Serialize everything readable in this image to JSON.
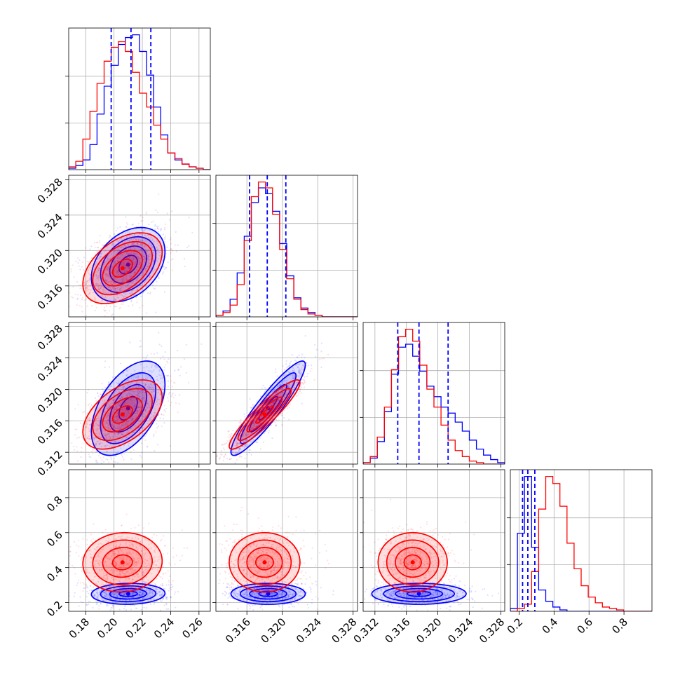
{
  "chart_data": {
    "type": "corner",
    "colors": {
      "series_a": "#0000ff",
      "series_b": "#ff0000"
    },
    "grid": true,
    "params": [
      {
        "range": [
          0.168,
          0.268
        ],
        "ticks": [
          "0.18",
          "0.20",
          "0.22",
          "0.24",
          "0.26"
        ]
      },
      {
        "range": [
          0.3125,
          0.3285
        ],
        "ticks": [
          "0.316",
          "0.320",
          "0.324",
          "0.328"
        ]
      },
      {
        "range": [
          0.3105,
          0.3285
        ],
        "ticks": [
          "0.312",
          "0.316",
          "0.320",
          "0.324",
          "0.328"
        ]
      },
      {
        "range": [
          0.15,
          0.96
        ],
        "ticks": [
          "0.2",
          "0.4",
          "0.6",
          "0.8"
        ]
      }
    ],
    "row_tick_labels": [
      [],
      [
        "0.316",
        "0.320",
        "0.324",
        "0.328"
      ],
      [
        "0.312",
        "0.316",
        "0.320",
        "0.324",
        "0.328"
      ],
      [
        "0.2",
        "0.4",
        "0.6",
        "0.8"
      ]
    ],
    "quantile_lines": [
      [
        0.198,
        0.212,
        0.226
      ],
      [
        0.3163,
        0.3183,
        0.3204
      ],
      [
        0.3149,
        0.3176,
        0.3213
      ],
      [
        0.22,
        0.25,
        0.29
      ]
    ],
    "histograms": [
      {
        "edges": [
          0.168,
          0.173,
          0.178,
          0.183,
          0.188,
          0.193,
          0.198,
          0.203,
          0.208,
          0.213,
          0.218,
          0.223,
          0.228,
          0.233,
          0.238,
          0.243,
          0.248,
          0.253,
          0.258,
          0.263,
          0.268
        ],
        "series_a": [
          1,
          3,
          7,
          18,
          40,
          60,
          75,
          90,
          95,
          97,
          85,
          68,
          45,
          25,
          12,
          7,
          4,
          2,
          1,
          0
        ],
        "series_b": [
          2,
          6,
          22,
          42,
          62,
          78,
          88,
          92,
          85,
          70,
          55,
          45,
          32,
          22,
          12,
          8,
          4,
          2,
          1,
          0
        ]
      },
      {
        "edges": [
          0.3125,
          0.3133,
          0.3141,
          0.3149,
          0.3157,
          0.3165,
          0.3173,
          0.3181,
          0.3189,
          0.3197,
          0.3205,
          0.3213,
          0.3221,
          0.3229,
          0.3237,
          0.3245,
          0.3253,
          0.3261,
          0.3269,
          0.3277,
          0.3285
        ],
        "series_a": [
          1,
          4,
          12,
          30,
          55,
          78,
          88,
          84,
          72,
          50,
          28,
          13,
          6,
          3,
          1,
          0,
          0,
          0,
          0,
          0
        ],
        "series_b": [
          1,
          3,
          8,
          22,
          52,
          82,
          92,
          88,
          70,
          46,
          26,
          12,
          5,
          2,
          1,
          0,
          0,
          0,
          0,
          0
        ]
      },
      {
        "edges": [
          0.3105,
          0.3114,
          0.3123,
          0.3132,
          0.3141,
          0.315,
          0.3159,
          0.3168,
          0.3177,
          0.3186,
          0.3195,
          0.3204,
          0.3213,
          0.3222,
          0.3231,
          0.324,
          0.3249,
          0.3258,
          0.3267,
          0.3276,
          0.3285
        ],
        "series_a": [
          1,
          4,
          15,
          35,
          60,
          78,
          80,
          72,
          62,
          52,
          45,
          38,
          34,
          28,
          22,
          16,
          10,
          6,
          3,
          1
        ],
        "series_b": [
          1,
          5,
          18,
          38,
          63,
          85,
          90,
          82,
          66,
          50,
          38,
          26,
          16,
          9,
          5,
          2,
          1,
          0,
          0,
          0
        ]
      },
      {
        "edges": [
          0.15,
          0.1905,
          0.231,
          0.2715,
          0.312,
          0.3525,
          0.393,
          0.4335,
          0.474,
          0.5145,
          0.555,
          0.5955,
          0.636,
          0.6765,
          0.717,
          0.7575,
          0.798,
          0.8385,
          0.879,
          0.9195,
          0.96
        ],
        "series_a": [
          2,
          55,
          95,
          45,
          15,
          7,
          3,
          1,
          0,
          0,
          0,
          0,
          0,
          0,
          0,
          0,
          0,
          0,
          0,
          0
        ],
        "series_b": [
          0,
          2,
          5,
          28,
          72,
          95,
          90,
          74,
          48,
          30,
          18,
          10,
          6,
          3,
          2,
          1,
          0,
          0,
          0,
          0
        ]
      }
    ],
    "density_2d": [
      {
        "x_param": 0,
        "y_param": 1,
        "series_a": {
          "mean": [
            0.21,
            0.3184
          ],
          "sd": [
            0.013,
            0.0021
          ],
          "rho": 0.35
        },
        "series_b": {
          "mean": [
            0.206,
            0.318
          ],
          "sd": [
            0.014,
            0.002
          ],
          "rho": 0.45
        }
      },
      {
        "x_param": 0,
        "y_param": 2,
        "series_a": {
          "mean": [
            0.21,
            0.3176
          ],
          "sd": [
            0.013,
            0.003
          ],
          "rho": 0.5
        },
        "series_b": {
          "mean": [
            0.206,
            0.3168
          ],
          "sd": [
            0.014,
            0.0022
          ],
          "rho": 0.5
        }
      },
      {
        "x_param": 1,
        "y_param": 2,
        "series_a": {
          "mean": [
            0.3184,
            0.3176
          ],
          "sd": [
            0.0021,
            0.003
          ],
          "rho": 0.92
        },
        "series_b": {
          "mean": [
            0.318,
            0.3168
          ],
          "sd": [
            0.002,
            0.0022
          ],
          "rho": 0.92
        }
      },
      {
        "x_param": 0,
        "y_param": 3,
        "series_a": {
          "mean": [
            0.21,
            0.25
          ],
          "sd": [
            0.013,
            0.03
          ],
          "rho": 0.05
        },
        "series_b": {
          "mean": [
            0.206,
            0.43
          ],
          "sd": [
            0.014,
            0.085
          ],
          "rho": 0.05
        }
      },
      {
        "x_param": 1,
        "y_param": 3,
        "series_a": {
          "mean": [
            0.3184,
            0.25
          ],
          "sd": [
            0.0021,
            0.03
          ],
          "rho": 0.0
        },
        "series_b": {
          "mean": [
            0.318,
            0.43
          ],
          "sd": [
            0.002,
            0.085
          ],
          "rho": 0.0
        }
      },
      {
        "x_param": 2,
        "y_param": 3,
        "series_a": {
          "mean": [
            0.3176,
            0.25
          ],
          "sd": [
            0.003,
            0.03
          ],
          "rho": 0.0
        },
        "series_b": {
          "mean": [
            0.3168,
            0.43
          ],
          "sd": [
            0.0022,
            0.085
          ],
          "rho": 0.0
        }
      }
    ],
    "contour_levels_sigma": [
      0.5,
      1.0,
      1.5,
      2.0
    ]
  }
}
